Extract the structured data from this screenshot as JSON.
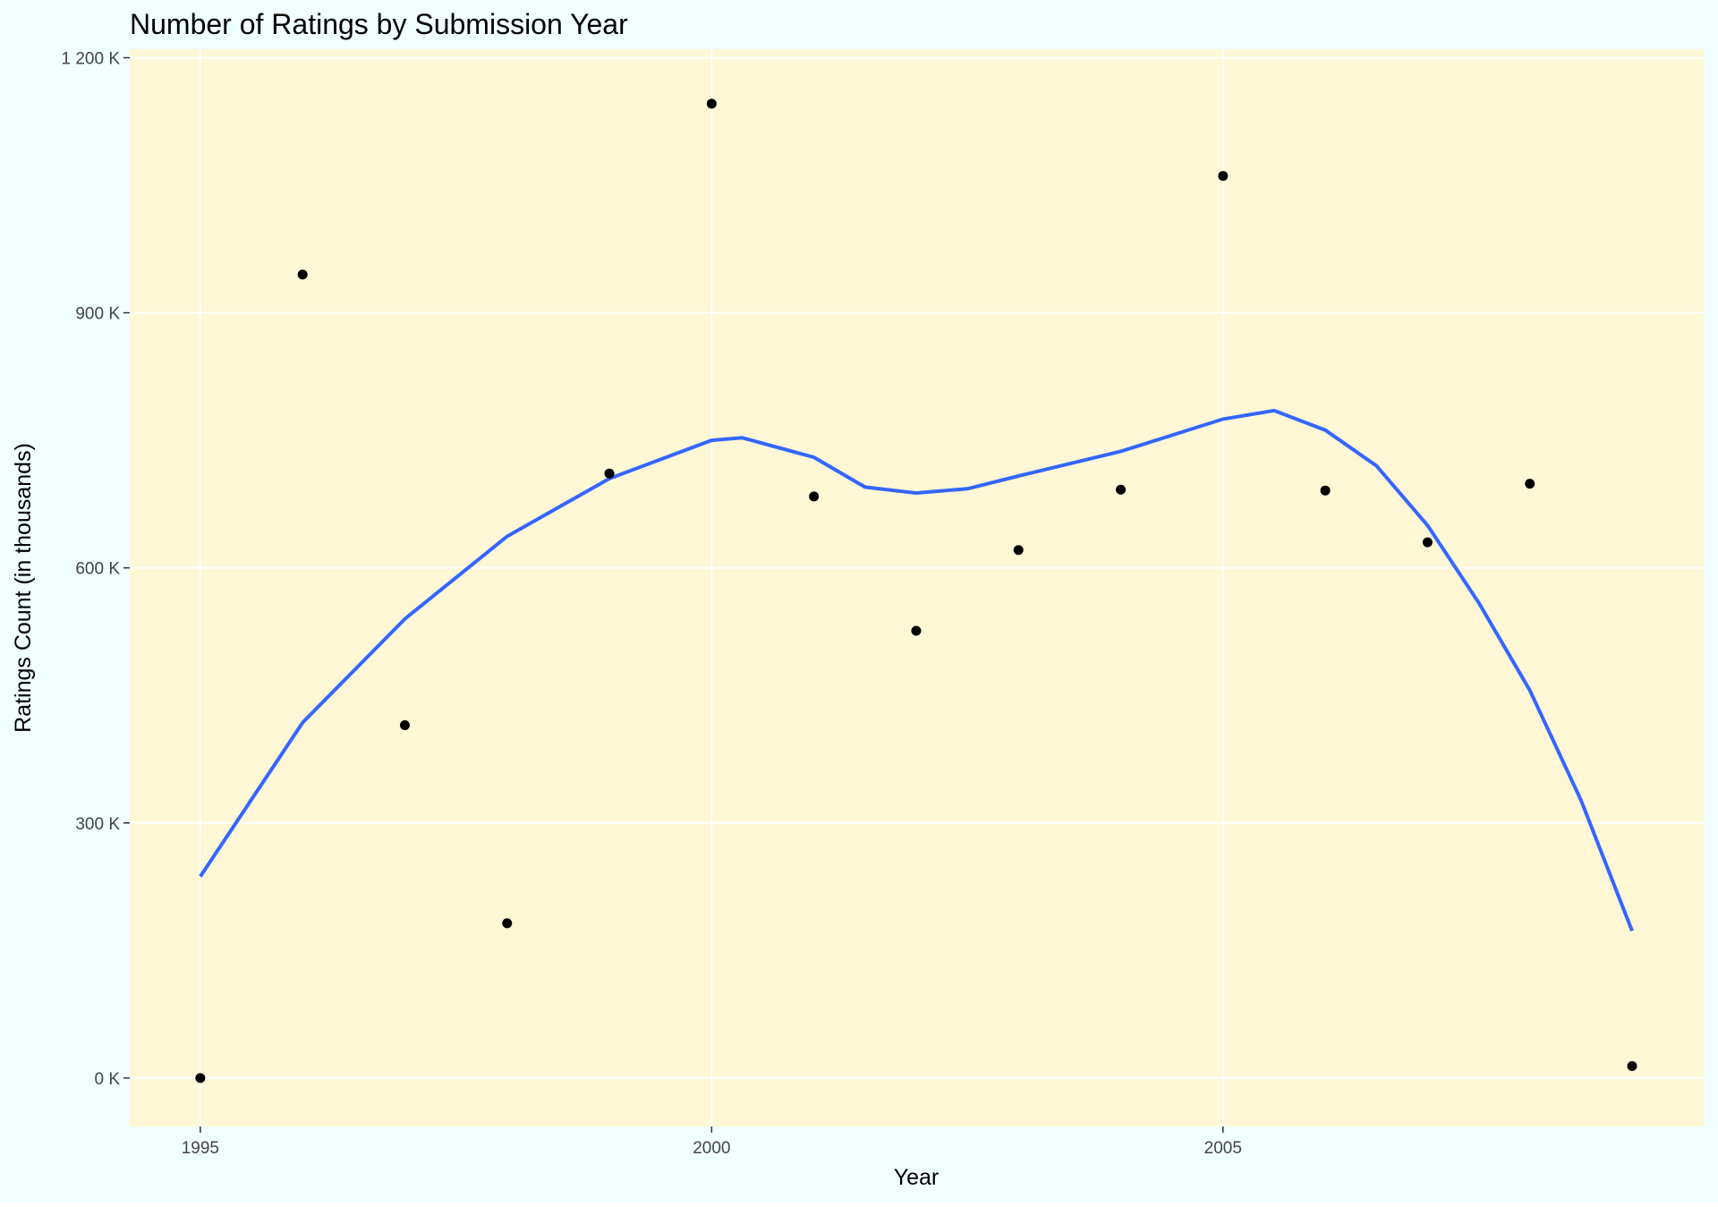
{
  "chart_data": {
    "type": "scatter",
    "title": "Number of Ratings by Submission Year",
    "x_label": "Year",
    "y_label": "Ratings Count (in thousands)",
    "x": [
      1995,
      1996,
      1997,
      1998,
      1999,
      2000,
      2001,
      2002,
      2003,
      2004,
      2005,
      2006,
      2007,
      2008,
      2009
    ],
    "values": [
      0,
      945,
      415,
      182,
      711,
      1146,
      684,
      526,
      621,
      692,
      1061,
      691,
      630,
      699,
      14
    ],
    "color": "#000000",
    "trend": {
      "x": [
        1995,
        1996,
        1997,
        1998,
        1999,
        2000,
        2000.3,
        2001,
        2001.5,
        2002,
        2002.5,
        2003,
        2004,
        2005,
        2005.5,
        2006,
        2006.5,
        2007,
        2007.5,
        2008,
        2008.5,
        2009
      ],
      "values": [
        237,
        418,
        540,
        637,
        705,
        750,
        753,
        730,
        695,
        688,
        693,
        708,
        737,
        775,
        785,
        762,
        720,
        650,
        559,
        456,
        327,
        173
      ],
      "color": "#3366ff"
    },
    "xlim": [
      1994.31,
      2009.7
    ],
    "ylim": [
      -57,
      1210
    ],
    "xticks": [
      1995,
      2000,
      2005
    ],
    "yticks": [
      {
        "value": 0,
        "label": "0 K"
      },
      {
        "value": 300,
        "label": "300 K"
      },
      {
        "value": 600,
        "label": "600 K"
      },
      {
        "value": 900,
        "label": "900 K"
      },
      {
        "value": 1200,
        "label": "1 200 K"
      }
    ],
    "grid": true,
    "background": "#f0ffff",
    "panel_color": "#fff7d6"
  }
}
